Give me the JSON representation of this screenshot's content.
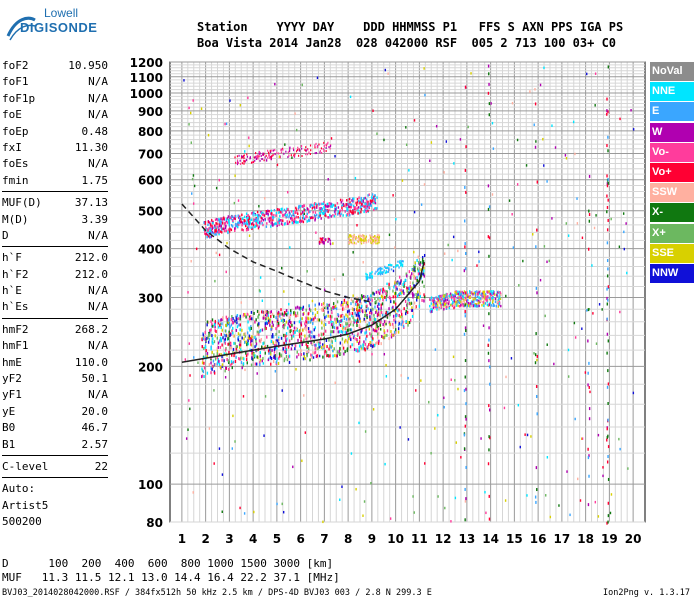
{
  "logo": {
    "line1": "Lowell",
    "line2": "DIGISONDE"
  },
  "header": {
    "row1": "Station    YYYY DAY    DDD HHMMSS P1   FFS S AXN PPS IGA PS",
    "row2": "Boa Vista 2014 Jan28  028 042000 RSF  005 2 713 100 03+ C0"
  },
  "params": [
    {
      "group": [
        {
          "name": "foF2",
          "value": "10.950"
        },
        {
          "name": "foF1",
          "value": "N/A"
        },
        {
          "name": "foF1p",
          "value": "N/A"
        },
        {
          "name": "foE",
          "value": "N/A"
        },
        {
          "name": "foEp",
          "value": "0.48"
        },
        {
          "name": "fxI",
          "value": "11.30"
        },
        {
          "name": "foEs",
          "value": "N/A"
        },
        {
          "name": "fmin",
          "value": "1.75"
        }
      ]
    },
    {
      "group": [
        {
          "name": "MUF(D)",
          "value": "37.13"
        },
        {
          "name": "M(D)",
          "value": "3.39"
        },
        {
          "name": "D",
          "value": "N/A"
        }
      ]
    },
    {
      "group": [
        {
          "name": "h`F",
          "value": "212.0"
        },
        {
          "name": "h`F2",
          "value": "212.0"
        },
        {
          "name": "h`E",
          "value": "N/A"
        },
        {
          "name": "h`Es",
          "value": "N/A"
        }
      ]
    },
    {
      "group": [
        {
          "name": "hmF2",
          "value": "268.2"
        },
        {
          "name": "hmF1",
          "value": "N/A"
        },
        {
          "name": "hmE",
          "value": "110.0"
        },
        {
          "name": "yF2",
          "value": "50.1"
        },
        {
          "name": "yF1",
          "value": "N/A"
        },
        {
          "name": "yE",
          "value": "20.0"
        },
        {
          "name": "B0",
          "value": "46.7"
        },
        {
          "name": "B1",
          "value": "2.57"
        }
      ]
    },
    {
      "group": [
        {
          "name": "C-level",
          "value": "22"
        }
      ]
    }
  ],
  "auto": {
    "line1": "Auto:",
    "line2": "Artist5",
    "line3": "500200"
  },
  "prop_table": {
    "d_row": "D      100  200  400  600  800 1000 1500 3000 [km]",
    "muf_row": "MUF   11.3 11.5 12.1 13.0 14.4 16.4 22.2 37.1 [MHz]"
  },
  "footer": {
    "left": "BVJ03_2014028042000.RSF / 384fx512h 50 kHz 2.5 km / DPS-4D BVJ03 003 / 2.8 N 299.3 E",
    "right": "Ion2Png v. 1.3.17"
  },
  "legend": [
    {
      "label": "NoVal",
      "color": "#8c8c8c"
    },
    {
      "label": "NNE",
      "color": "#00e5ff"
    },
    {
      "label": "E",
      "color": "#3aa6ff"
    },
    {
      "label": "W",
      "color": "#b000b0"
    },
    {
      "label": "Vo-",
      "color": "#ff3c9c"
    },
    {
      "label": "Vo+",
      "color": "#ff0033"
    },
    {
      "label": "SSW",
      "color": "#ffb0a0"
    },
    {
      "label": "X-",
      "color": "#107810"
    },
    {
      "label": "X+",
      "color": "#6cb860"
    },
    {
      "label": "SSE",
      "color": "#d8d000"
    },
    {
      "label": "NNW",
      "color": "#1010d8"
    }
  ],
  "chart_data": {
    "type": "scatter",
    "title": "",
    "xlabel": "",
    "ylabel": "",
    "xlim": [
      0.5,
      20.5
    ],
    "ylim": [
      80,
      1200
    ],
    "y_scale": "log",
    "grid": true,
    "legend_placement": "right",
    "xticks": [
      1,
      2,
      3,
      4,
      5,
      6,
      7,
      8,
      9,
      10,
      11,
      12,
      13,
      14,
      15,
      16,
      17,
      18,
      19,
      20
    ],
    "yticks": [
      80,
      100,
      200,
      300,
      400,
      500,
      600,
      700,
      800,
      900,
      1000,
      1100,
      1200
    ],
    "series": [
      {
        "name": "F2 trace",
        "points": [
          [
            1.8,
            225
          ],
          [
            2.5,
            232
          ],
          [
            3.5,
            238
          ],
          [
            4.5,
            242
          ],
          [
            5.5,
            245
          ],
          [
            6.5,
            250
          ],
          [
            7.5,
            255
          ],
          [
            8.5,
            262
          ],
          [
            9.5,
            275
          ],
          [
            10.5,
            305
          ],
          [
            11.0,
            340
          ]
        ]
      },
      {
        "name": "2F echo",
        "points": [
          [
            1.9,
            450
          ],
          [
            3,
            465
          ],
          [
            4,
            475
          ],
          [
            5,
            485
          ],
          [
            6,
            495
          ],
          [
            7,
            505
          ],
          [
            8,
            515
          ],
          [
            9,
            530
          ]
        ]
      },
      {
        "name": "3F echo",
        "points": [
          [
            3.2,
            675
          ],
          [
            4,
            688
          ],
          [
            5,
            705
          ],
          [
            6,
            715
          ],
          [
            7,
            730
          ]
        ]
      },
      {
        "name": "Oblique",
        "points": [
          [
            11.5,
            290
          ],
          [
            12.5,
            300
          ],
          [
            13.5,
            300
          ],
          [
            14.2,
            300
          ]
        ]
      }
    ],
    "profile_curves": [
      {
        "name": "profile-dashed",
        "points": [
          [
            1,
            520
          ],
          [
            2,
            445
          ],
          [
            3,
            400
          ],
          [
            4,
            370
          ],
          [
            5,
            350
          ],
          [
            6,
            330
          ],
          [
            7,
            312
          ],
          [
            8,
            300
          ],
          [
            9,
            292
          ]
        ]
      },
      {
        "name": "profile-solid",
        "points": [
          [
            1,
            205
          ],
          [
            3,
            215
          ],
          [
            5,
            225
          ],
          [
            7,
            235
          ],
          [
            8,
            242
          ],
          [
            9,
            255
          ],
          [
            10,
            280
          ],
          [
            11,
            330
          ],
          [
            11.2,
            370
          ]
        ]
      }
    ]
  }
}
